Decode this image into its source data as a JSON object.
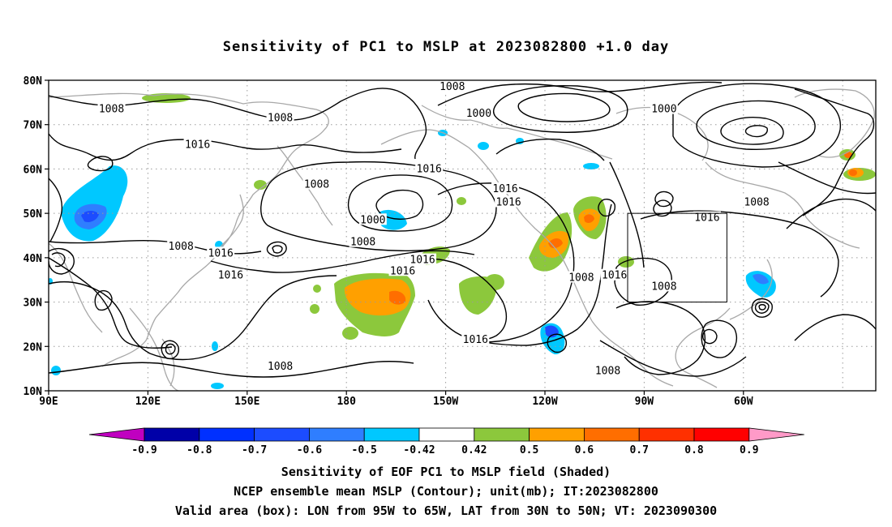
{
  "title": "Sensitivity of PC1 to MSLP at 2023082800 +1.0 day",
  "lat_ticks": [
    "80N",
    "70N",
    "60N",
    "50N",
    "40N",
    "30N",
    "20N",
    "10N"
  ],
  "lon_ticks": [
    "90E",
    "120E",
    "150E",
    "180",
    "150W",
    "120W",
    "90W",
    "60W"
  ],
  "contour_labels": [
    {
      "text": "1008",
      "lon": 109,
      "lat": 73.5
    },
    {
      "text": "1008",
      "lon": 160,
      "lat": 71.5
    },
    {
      "text": "1008",
      "lon": 212,
      "lat": 78.5
    },
    {
      "text": "1000",
      "lon": 220,
      "lat": 72.5
    },
    {
      "text": "1000",
      "lon": 276,
      "lat": 73.5
    },
    {
      "text": "1016",
      "lon": 135,
      "lat": 65.5
    },
    {
      "text": "1016",
      "lon": 205,
      "lat": 60
    },
    {
      "text": "1008",
      "lon": 171,
      "lat": 56.5
    },
    {
      "text": "1016",
      "lon": 228,
      "lat": 55.5
    },
    {
      "text": "1016",
      "lon": 229,
      "lat": 52.5
    },
    {
      "text": "1000",
      "lon": 188,
      "lat": 48.5
    },
    {
      "text": "1008",
      "lon": 185,
      "lat": 43.5
    },
    {
      "text": "1008",
      "lon": 130,
      "lat": 42.5
    },
    {
      "text": "1016",
      "lon": 142,
      "lat": 41
    },
    {
      "text": "1016",
      "lon": 203,
      "lat": 39.5
    },
    {
      "text": "1016",
      "lon": 197,
      "lat": 37
    },
    {
      "text": "1016",
      "lon": 145,
      "lat": 36
    },
    {
      "text": "1008",
      "lon": 251,
      "lat": 35.5
    },
    {
      "text": "1016",
      "lon": 261,
      "lat": 36
    },
    {
      "text": "1008",
      "lon": 276,
      "lat": 33.5
    },
    {
      "text": "1016",
      "lon": 289,
      "lat": 49
    },
    {
      "text": "1008",
      "lon": 304,
      "lat": 52.5
    },
    {
      "text": "1016",
      "lon": 219,
      "lat": 21.5
    },
    {
      "text": "1008",
      "lon": 160,
      "lat": 15.5
    },
    {
      "text": "1008",
      "lon": 259,
      "lat": 14.5
    }
  ],
  "valid_box": {
    "lon_min": -95,
    "lon_max": -65,
    "lat_min": 30,
    "lat_max": 50
  },
  "colorbar": {
    "labels": [
      "-0.9",
      "-0.8",
      "-0.7",
      "-0.6",
      "-0.5",
      "-0.42",
      "0.42",
      "0.5",
      "0.6",
      "0.7",
      "0.8",
      "0.9"
    ],
    "colors": [
      "#c000c0",
      "#0000a8",
      "#0030ff",
      "#1c4cff",
      "#2f7eff",
      "#00c8ff",
      "#ffffff",
      "#8cc83c",
      "#ffa000",
      "#ff6e00",
      "#ff3000",
      "#ff0000",
      "#ff9ac8"
    ]
  },
  "caption_lines": [
    "Sensitivity of EOF PC1 to MSLP field (Shaded)",
    "NCEP ensemble mean MSLP (Contour); unit(mb); IT:2023082800",
    "Valid area (box): LON from 95W to 65W, LAT from 30N to 50N; VT: 2023090300"
  ],
  "colors": {
    "contour": "#000000",
    "coastline": "#a8a8a8",
    "grid": "#9a9a9a",
    "frame": "#000000"
  }
}
